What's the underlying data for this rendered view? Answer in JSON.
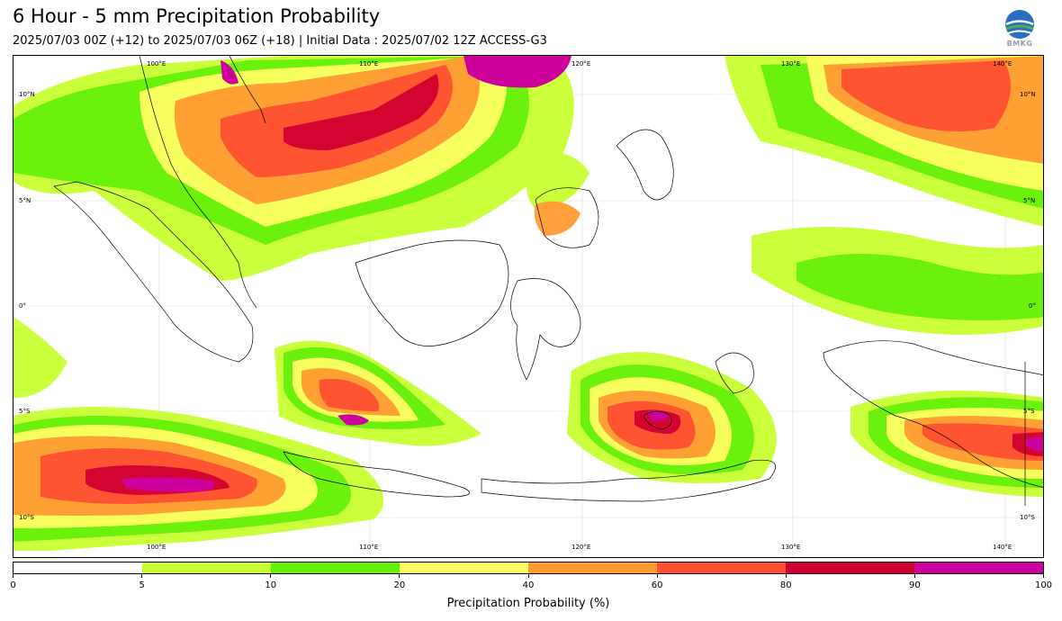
{
  "title": "6 Hour - 5 mm Precipitation Probability",
  "subtitle": "2025/07/03 00Z (+12) to 2025/07/03 06Z (+18) | Initial Data : 2025/07/02 12Z ACCESS-G3",
  "logo_text": "BMKG",
  "map": {
    "lon_labels": [
      "100°E",
      "110°E",
      "120°E",
      "130°E",
      "140°E"
    ],
    "lat_labels": [
      "10°N",
      "5°N",
      "0°",
      "5°S",
      "10°S"
    ]
  },
  "colorbar": {
    "title": "Precipitation Probability (%)",
    "tick_labels": [
      "0",
      "5",
      "10",
      "20",
      "40",
      "60",
      "80",
      "90",
      "100"
    ],
    "colors": [
      "#ffffff",
      "#c8ff32",
      "#64f00a",
      "#ffff64",
      "#ff9b32",
      "#ff5032",
      "#d20032",
      "#cd009b"
    ]
  }
}
